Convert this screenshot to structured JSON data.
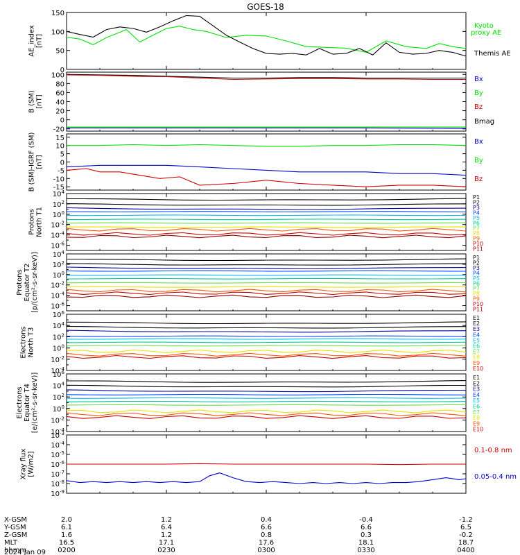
{
  "title": "GOES-18",
  "colors": {
    "black": "#000000",
    "green": "#00e000",
    "blue": "#0000cc",
    "red": "#cc0000",
    "p_channels": [
      "#000000",
      "#000000",
      "#000099",
      "#0044ff",
      "#00bbee",
      "#00c8a0",
      "#66dd44",
      "#e8e000",
      "#ffaa00",
      "#ff5500",
      "#cc0000",
      "#990000"
    ]
  },
  "x_axis": {
    "ticks": [
      0,
      30,
      60,
      90,
      120
    ],
    "rows": [
      {
        "label": "X-GSM",
        "values": [
          "2.0",
          "1.2",
          "0.4",
          "-0.4",
          "-1.2"
        ]
      },
      {
        "label": "Y-GSM",
        "values": [
          "6.1",
          "6.4",
          "6.6",
          "6.6",
          "6.5"
        ]
      },
      {
        "label": "Z-GSM",
        "values": [
          "1.6",
          "1.2",
          "0.8",
          "0.3",
          "-0.2"
        ]
      },
      {
        "label": "MLT",
        "values": [
          "16.5",
          "17.1",
          "17.6",
          "18.1",
          "18.7"
        ]
      },
      {
        "label": "hhmm",
        "values": [
          "0200",
          "0230",
          "0300",
          "0330",
          "0400"
        ]
      }
    ],
    "date": "2024 Jan 09"
  },
  "chart_data": [
    {
      "type": "line",
      "name": "ae",
      "ylabel": [
        "AE_index",
        "[nT]"
      ],
      "yticks": [
        "150",
        "100",
        "50",
        "0"
      ],
      "ylim": [
        0,
        150
      ],
      "legend": [
        {
          "text": "Kyoto",
          "color": "#00e000"
        },
        {
          "text": "proxy AE",
          "color": "#00e000"
        },
        {
          "text": "Themis AE",
          "color": "#000000"
        }
      ],
      "series": [
        {
          "name": "Kyoto proxy AE",
          "color": "#00e000",
          "x": [
            0,
            4,
            8,
            12,
            18,
            22,
            26,
            30,
            34,
            38,
            42,
            48,
            54,
            60,
            66,
            72,
            78,
            84,
            90,
            96,
            102,
            108,
            112,
            116,
            120
          ],
          "y": [
            85,
            80,
            65,
            84,
            105,
            72,
            90,
            108,
            114,
            105,
            100,
            84,
            90,
            88,
            75,
            60,
            58,
            56,
            45,
            75,
            60,
            55,
            68,
            60,
            55
          ]
        },
        {
          "name": "Themis AE",
          "color": "#000000",
          "x": [
            0,
            4,
            8,
            12,
            16,
            20,
            24,
            28,
            32,
            36,
            40,
            44,
            48,
            52,
            56,
            60,
            64,
            68,
            72,
            76,
            80,
            84,
            88,
            92,
            96,
            100,
            104,
            108,
            112,
            116,
            120
          ],
          "y": [
            100,
            92,
            85,
            105,
            112,
            108,
            98,
            112,
            128,
            142,
            140,
            115,
            90,
            72,
            55,
            42,
            40,
            42,
            38,
            55,
            40,
            42,
            55,
            38,
            70,
            45,
            40,
            42,
            50,
            45,
            35
          ]
        }
      ]
    },
    {
      "type": "line",
      "name": "b_sm",
      "ylabel": [
        "B (SM)",
        "[nT]"
      ],
      "yticks": [
        "100",
        "80",
        "60",
        "40",
        "20",
        "0",
        "-20"
      ],
      "ylim": [
        -25,
        105
      ],
      "legend": [
        {
          "text": "Bx",
          "color": "#0000cc"
        },
        {
          "text": "By",
          "color": "#00e000"
        },
        {
          "text": "Bz",
          "color": "#cc0000"
        },
        {
          "text": "Bmag",
          "color": "#000000"
        }
      ],
      "series": [
        {
          "name": "Bmag",
          "color": "#000000",
          "x": [
            0,
            10,
            20,
            30,
            40,
            50,
            60,
            70,
            80,
            90,
            100,
            110,
            120
          ],
          "y": [
            100,
            99,
            98,
            96,
            94,
            92,
            92,
            93,
            93,
            92,
            92,
            92,
            92
          ]
        },
        {
          "name": "Bz",
          "color": "#cc0000",
          "x": [
            0,
            10,
            20,
            30,
            40,
            50,
            60,
            70,
            80,
            90,
            100,
            110,
            120
          ],
          "y": [
            99,
            98,
            96,
            95,
            92,
            89,
            90,
            91,
            91,
            90,
            90,
            89,
            89
          ]
        },
        {
          "name": "By",
          "color": "#00e000",
          "x": [
            0,
            30,
            60,
            90,
            120
          ],
          "y": [
            -16,
            -16,
            -16,
            -16,
            -16
          ]
        },
        {
          "name": "Bx",
          "color": "#0000cc",
          "x": [
            0,
            30,
            60,
            90,
            120
          ],
          "y": [
            -18,
            -18,
            -18,
            -18,
            -19
          ]
        }
      ]
    },
    {
      "type": "line",
      "name": "b_igrf",
      "ylabel": [
        "B (SM)-IGRF (SM)",
        "[nT]"
      ],
      "yticks": [
        "15",
        "10",
        "5",
        "0",
        "-5",
        "-10",
        "-15"
      ],
      "ylim": [
        -17,
        17
      ],
      "legend": [
        {
          "text": "Bx",
          "color": "#0000cc"
        },
        {
          "text": "By",
          "color": "#00e000"
        },
        {
          "text": "Bz",
          "color": "#cc0000"
        }
      ],
      "series": [
        {
          "name": "By",
          "color": "#00e000",
          "x": [
            0,
            10,
            20,
            30,
            40,
            50,
            60,
            70,
            80,
            90,
            100,
            110,
            120
          ],
          "y": [
            10,
            10,
            10.5,
            10,
            10.5,
            10,
            9.5,
            9.5,
            10,
            10,
            10.5,
            10.5,
            10
          ]
        },
        {
          "name": "Bx",
          "color": "#0000cc",
          "x": [
            0,
            10,
            20,
            30,
            40,
            50,
            60,
            70,
            80,
            90,
            100,
            110,
            120
          ],
          "y": [
            -3,
            -2,
            -2,
            -2,
            -3,
            -4,
            -5,
            -6,
            -6,
            -6,
            -7,
            -7,
            -8
          ]
        },
        {
          "name": "Bz",
          "color": "#cc0000",
          "x": [
            0,
            6,
            10,
            16,
            22,
            28,
            34,
            40,
            50,
            60,
            70,
            80,
            90,
            100,
            110,
            120
          ],
          "y": [
            -5,
            -4,
            -6,
            -6,
            -8,
            -10,
            -9,
            -14,
            -13,
            -11,
            -13,
            -14,
            -15,
            -14,
            -14,
            -15
          ]
        }
      ]
    },
    {
      "type": "line",
      "name": "protons_t1",
      "log": true,
      "ylabel": [
        "Protons",
        "North T1"
      ],
      "yticks_exp": [
        4,
        2,
        0,
        -2,
        -4,
        -6
      ],
      "ylim_exp": [
        -7,
        4
      ],
      "legend": [
        "P1",
        "P2",
        "P3",
        "P4",
        "P5",
        "P6",
        "P7",
        "P8",
        "P9",
        "P10",
        "P11"
      ],
      "levels_exp": [
        3.0,
        2.0,
        1.2,
        0.5,
        -0.2,
        -1.0,
        -1.7,
        -2.5,
        -3.0,
        -3.8,
        -4.3
      ]
    },
    {
      "type": "line",
      "name": "protons_t2",
      "log": true,
      "ylabel": [
        "Protons",
        "Equator T2",
        "[p/(cm²-s-sr-keV)]"
      ],
      "yticks_exp": [
        4,
        2,
        0,
        -2,
        -4,
        -6
      ],
      "ylim_exp": [
        -7,
        4
      ],
      "legend": [
        "P1",
        "P2",
        "P3",
        "P4",
        "P5",
        "P6",
        "P7",
        "P8",
        "P9",
        "P10",
        "P11"
      ],
      "levels_exp": [
        3.0,
        2.1,
        1.4,
        0.7,
        -0.1,
        -0.8,
        -1.6,
        -2.4,
        -3.1,
        -3.6,
        -4.2
      ]
    },
    {
      "type": "line",
      "name": "electrons_t3",
      "log": true,
      "ylabel": [
        "Electrons",
        "North T3"
      ],
      "yticks_exp": [
        6,
        4,
        2,
        0,
        -2,
        -4
      ],
      "ylim_exp": [
        -4,
        6
      ],
      "legend": [
        "E1",
        "E2",
        "E3",
        "E4",
        "E5",
        "E6",
        "E7",
        "E8",
        "E9",
        "E10"
      ],
      "levels_exp": [
        4.6,
        3.8,
        3.1,
        2.1,
        1.6,
        1.0,
        0.4,
        -0.6,
        -1.2,
        -1.6
      ]
    },
    {
      "type": "line",
      "name": "electrons_t4",
      "log": true,
      "ylabel": [
        "Electrons",
        "Equator T4",
        "[e/(cm²-s-sr-keV)]"
      ],
      "yticks_exp": [
        6,
        4,
        2,
        0,
        -2,
        -4
      ],
      "ylim_exp": [
        -4,
        6
      ],
      "legend": [
        "E1",
        "E2",
        "E3",
        "E4",
        "E5",
        "E6",
        "E7",
        "E8",
        "E9",
        "E10"
      ],
      "levels_exp": [
        4.8,
        4.0,
        3.2,
        2.4,
        1.8,
        1.2,
        0.6,
        -0.5,
        -1.0,
        -1.5
      ]
    },
    {
      "type": "line",
      "name": "xray",
      "log": true,
      "ylabel": [
        "Xray flux",
        "[W/m2]"
      ],
      "yticks_exp": [
        -3,
        -4,
        -5,
        -6,
        -7,
        -8,
        -9
      ],
      "ylim_exp": [
        -9,
        -3
      ],
      "legend": [
        {
          "text": "0.1-0.8 nm",
          "color": "#cc0000"
        },
        {
          "text": "0.05-0.4 nm",
          "color": "#0000cc"
        }
      ],
      "series": [
        {
          "name": "0.1-0.8 nm",
          "color": "#cc0000",
          "x": [
            0,
            10,
            20,
            30,
            40,
            50,
            60,
            70,
            80,
            90,
            100,
            110,
            120
          ],
          "y": [
            -6.0,
            -6.0,
            -6.0,
            -6.0,
            -5.95,
            -6.0,
            -6.0,
            -6.0,
            -6.0,
            -6.0,
            -6.05,
            -6.0,
            -6.0
          ]
        },
        {
          "name": "0.05-0.4 nm",
          "color": "#0000cc",
          "x": [
            0,
            4,
            8,
            12,
            16,
            20,
            24,
            28,
            32,
            36,
            40,
            43,
            46,
            50,
            54,
            58,
            62,
            66,
            70,
            74,
            78,
            82,
            86,
            90,
            94,
            98,
            102,
            106,
            110,
            114,
            118,
            120
          ],
          "y": [
            -7.7,
            -7.9,
            -7.8,
            -7.9,
            -7.8,
            -7.9,
            -7.8,
            -7.9,
            -7.8,
            -7.9,
            -7.8,
            -7.2,
            -6.9,
            -7.4,
            -7.8,
            -7.9,
            -7.8,
            -7.9,
            -8.0,
            -7.9,
            -8.0,
            -7.9,
            -8.0,
            -7.9,
            -8.0,
            -7.9,
            -7.9,
            -7.8,
            -7.6,
            -7.4,
            -7.6,
            -7.5
          ]
        }
      ]
    }
  ]
}
